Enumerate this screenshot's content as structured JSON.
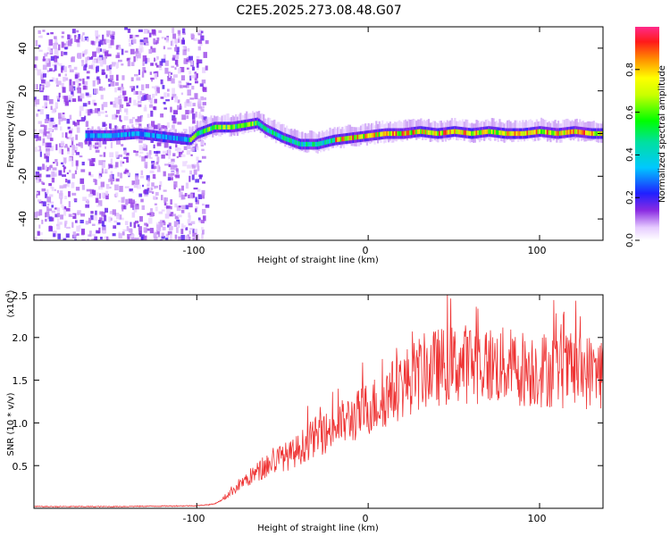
{
  "title": "C2E5.2025.273.08.48.G07",
  "chart_data": [
    {
      "type": "heatmap",
      "name": "spectrogram",
      "xlabel": "Height of straight line (km)",
      "ylabel": "Frequency (Hz)",
      "xlim": [
        -195,
        137
      ],
      "ylim": [
        -50,
        50
      ],
      "xticks": [
        -100,
        0,
        100
      ],
      "yticks": [
        -40,
        -20,
        0,
        20,
        40
      ],
      "x_tick_labels": [
        "-100",
        "0",
        "100"
      ],
      "y_tick_labels": [
        "-40",
        "-20",
        "0",
        "20",
        "40"
      ],
      "noise_region_x": [
        -195,
        -95
      ],
      "signal_start_x": -165,
      "ridge": {
        "x": [
          -165,
          -150,
          -135,
          -125,
          -115,
          -104,
          -100,
          -90,
          -80,
          -72,
          -65,
          -60,
          -50,
          -40,
          -30,
          -20,
          -10,
          0,
          10,
          20,
          30,
          40,
          50,
          60,
          70,
          80,
          90,
          100,
          110,
          120,
          130,
          137
        ],
        "freq": [
          -1,
          -1,
          0,
          -1,
          -2,
          -3,
          0,
          3,
          3,
          4,
          5,
          2,
          -2,
          -5,
          -5,
          -3,
          -2,
          -1,
          0,
          0,
          1,
          0,
          1,
          0,
          1,
          0,
          0,
          1,
          0,
          1,
          0,
          0
        ]
      },
      "colorbar": {
        "label": "Normalized spectral amplitude",
        "range": [
          0,
          1
        ],
        "ticks": [
          0.0,
          0.2,
          0.4,
          0.6,
          0.8
        ],
        "tick_labels": [
          "0.0",
          "0.2",
          "0.4",
          "0.6",
          "0.8"
        ]
      }
    },
    {
      "type": "line",
      "name": "snr",
      "xlabel": "Height of straight line (km)",
      "ylabel": "SNR (10 * v/v)",
      "y_exponent_label": "(x10",
      "y_exponent": "4",
      "xlim": [
        -195,
        137
      ],
      "ylim": [
        0,
        2.5
      ],
      "xticks": [
        -100,
        0,
        100
      ],
      "yticks": [
        0.5,
        1.0,
        1.5,
        2.0,
        2.5
      ],
      "x_tick_labels": [
        "-100",
        "0",
        "100"
      ],
      "y_tick_labels": [
        "0.5",
        "1.0",
        "1.5",
        "2.0",
        "2.5"
      ],
      "color": "#ee3333",
      "series": {
        "x": [
          -195,
          -150,
          -100,
          -90,
          -85,
          -80,
          -75,
          -70,
          -65,
          -60,
          -55,
          -50,
          -45,
          -40,
          -35,
          -30,
          -25,
          -20,
          -15,
          -10,
          -5,
          0,
          5,
          10,
          15,
          20,
          25,
          30,
          35,
          40,
          50,
          60,
          70,
          80,
          90,
          100,
          110,
          120,
          130,
          137
        ],
        "level": [
          0.02,
          0.02,
          0.03,
          0.05,
          0.1,
          0.2,
          0.28,
          0.35,
          0.42,
          0.48,
          0.55,
          0.6,
          0.62,
          0.7,
          0.78,
          0.85,
          0.88,
          0.95,
          1.0,
          1.05,
          1.1,
          1.18,
          1.22,
          1.3,
          1.38,
          1.45,
          1.52,
          1.58,
          1.62,
          1.65,
          1.68,
          1.7,
          1.68,
          1.66,
          1.64,
          1.63,
          1.62,
          1.6,
          1.6,
          1.6
        ]
      }
    }
  ]
}
